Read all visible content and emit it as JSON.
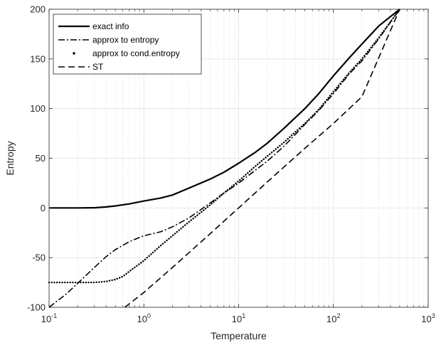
{
  "chart_data": {
    "type": "line",
    "xlabel": "Temperature",
    "ylabel": "Entropy",
    "xscale": "log",
    "xlim": [
      0.1,
      1000
    ],
    "ylim": [
      -100,
      200
    ],
    "grid": true,
    "legend_position": "top-left",
    "x_ticks": [
      {
        "base": "10",
        "exp": "-1"
      },
      {
        "base": "10",
        "exp": "0"
      },
      {
        "base": "10",
        "exp": "1"
      },
      {
        "base": "10",
        "exp": "2"
      },
      {
        "base": "10",
        "exp": "3"
      }
    ],
    "y_ticks": [
      "-100",
      "-50",
      "0",
      "50",
      "100",
      "150",
      "200"
    ],
    "series": [
      {
        "name": "exact info",
        "style": "solid",
        "x": [
          0.1,
          0.2,
          0.3,
          0.4,
          0.5,
          0.7,
          1,
          1.5,
          2,
          3,
          5,
          7,
          10,
          15,
          20,
          30,
          50,
          70,
          100,
          150,
          200,
          300,
          500
        ],
        "y": [
          0,
          0,
          0.2,
          1,
          2,
          4,
          7,
          10,
          13,
          20,
          29,
          36,
          45,
          56,
          65,
          80,
          100,
          115,
          133,
          152,
          165,
          183,
          200
        ]
      },
      {
        "name": "approx to entropy",
        "style": "dashdot",
        "x": [
          0.1,
          0.15,
          0.2,
          0.3,
          0.4,
          0.5,
          0.7,
          1,
          1.5,
          2,
          3,
          5,
          7,
          10,
          15,
          20,
          30,
          50,
          70,
          100,
          150,
          200,
          300,
          500
        ],
        "y": [
          -100,
          -87,
          -76,
          -60,
          -49,
          -42,
          -34,
          -28,
          -24,
          -19,
          -10,
          5,
          15,
          25,
          38,
          47,
          62,
          84,
          98,
          115,
          136,
          148,
          170,
          200
        ]
      },
      {
        "name": "approx to cond.entropy",
        "style": "dotted",
        "x": [
          0.1,
          0.2,
          0.3,
          0.4,
          0.5,
          0.6,
          0.7,
          1,
          1.5,
          2,
          3,
          5,
          7,
          10,
          15,
          20,
          30,
          50,
          70,
          100,
          150,
          200,
          300,
          500
        ],
        "y": [
          -75,
          -75,
          -75,
          -74,
          -72,
          -69,
          -64,
          -53,
          -38,
          -28,
          -14,
          3,
          15,
          27,
          42,
          52,
          66,
          85,
          99,
          117,
          137,
          150,
          171,
          200
        ]
      },
      {
        "name": "ST",
        "style": "dashed",
        "x": [
          0.63,
          1,
          2,
          5,
          10,
          20,
          50,
          100,
          200,
          500
        ],
        "y": [
          -100,
          -85,
          -60,
          -26,
          0,
          26,
          60,
          85,
          112,
          200
        ]
      }
    ]
  }
}
